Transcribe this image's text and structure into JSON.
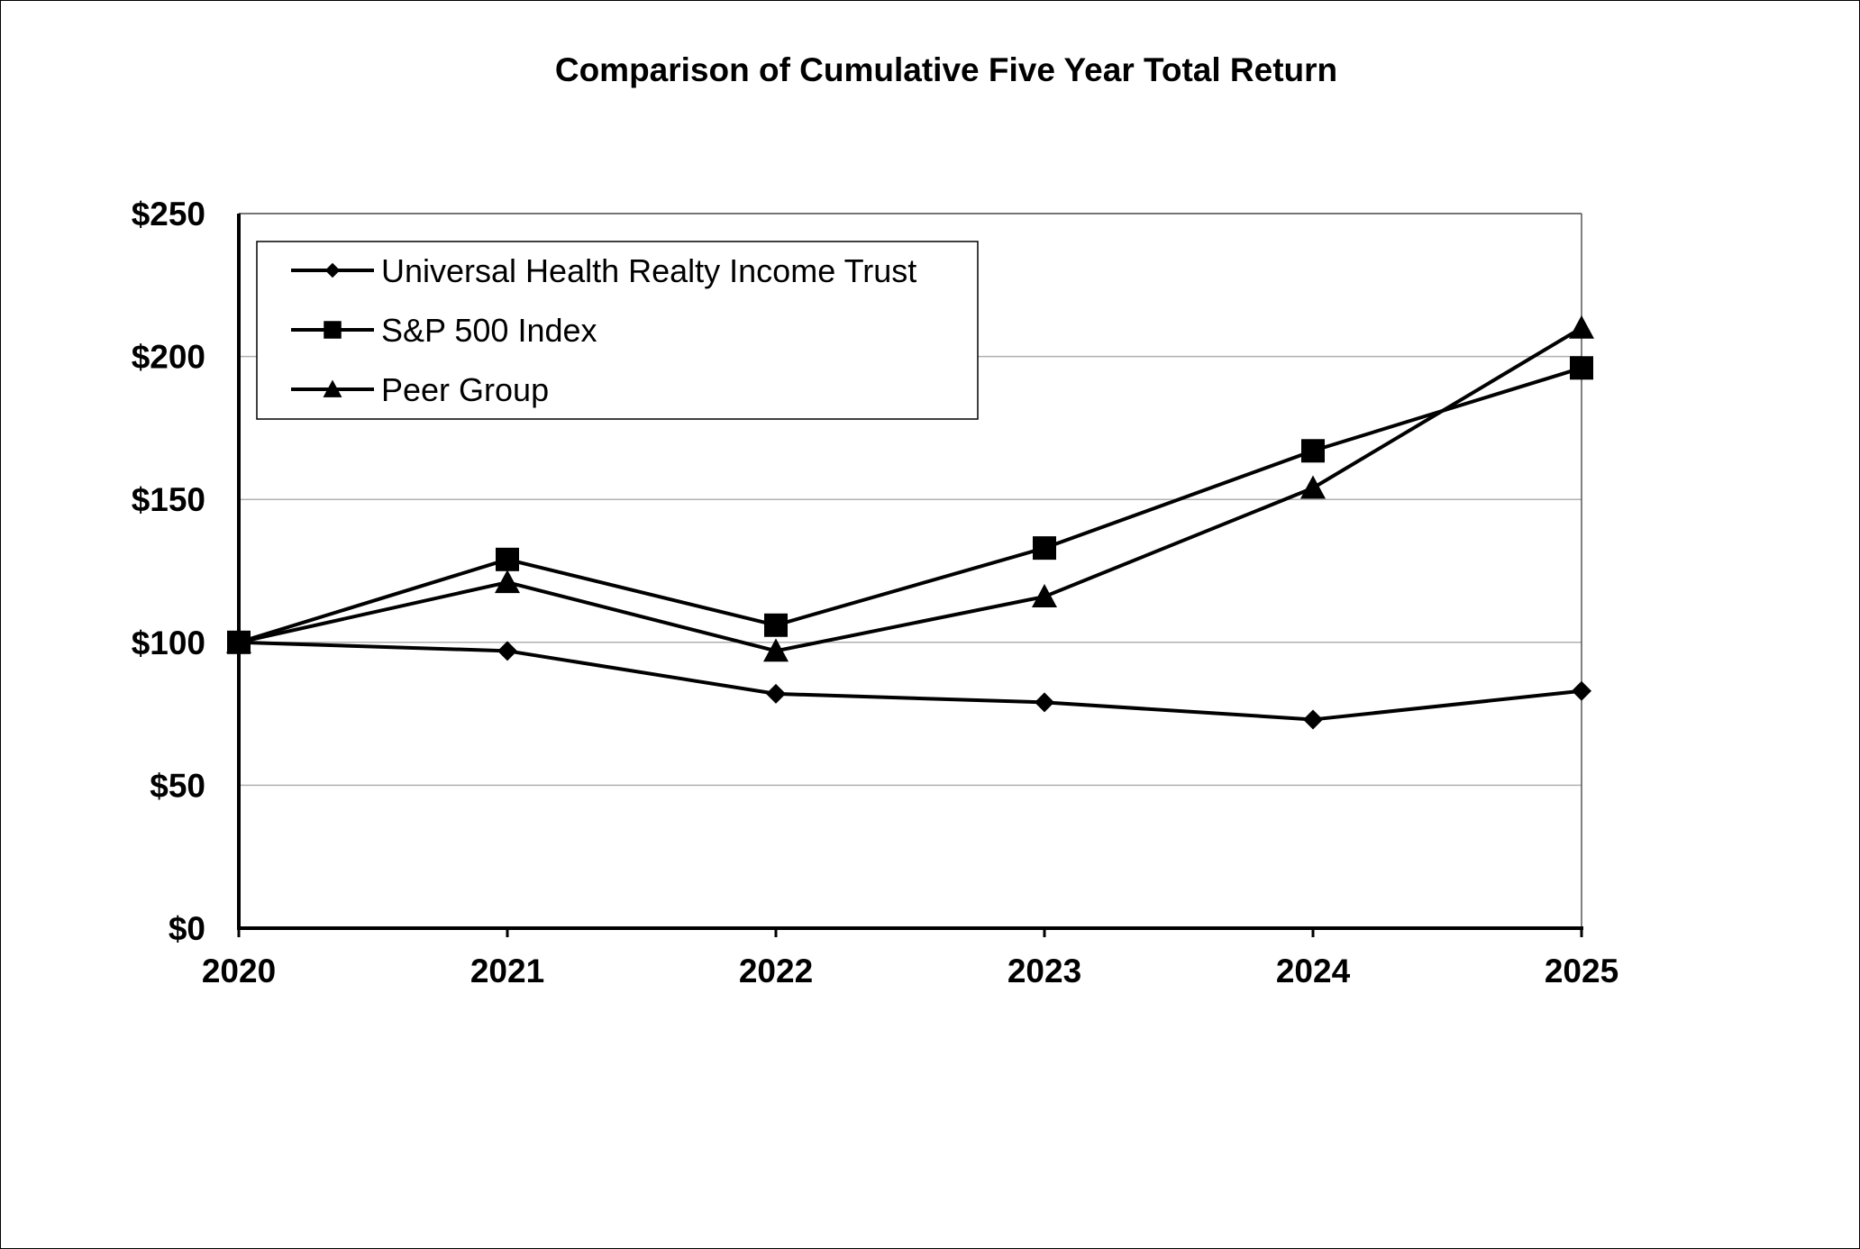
{
  "chart_data": {
    "type": "line",
    "title": "Comparison of Cumulative Five Year Total Return",
    "categories": [
      "2020",
      "2021",
      "2022",
      "2023",
      "2024",
      "2025"
    ],
    "y_ticks": [
      "$0",
      "$50",
      "$100",
      "$150",
      "$200",
      "$250"
    ],
    "y_tick_values": [
      0,
      50,
      100,
      150,
      200,
      250
    ],
    "ylim": [
      0,
      250
    ],
    "grid": true,
    "legend_position": "top-left",
    "line_color": "#000000",
    "grid_color": "#b0b0b0",
    "series": [
      {
        "name": "Universal Health Realty Income Trust",
        "marker": "diamond",
        "values": [
          100,
          97,
          82,
          79,
          73,
          83
        ]
      },
      {
        "name": "S&P 500 Index",
        "marker": "square",
        "values": [
          100,
          129,
          106,
          133,
          167,
          196
        ]
      },
      {
        "name": "Peer Group",
        "marker": "triangle",
        "values": [
          100,
          121,
          97,
          116,
          154,
          210
        ]
      }
    ]
  }
}
